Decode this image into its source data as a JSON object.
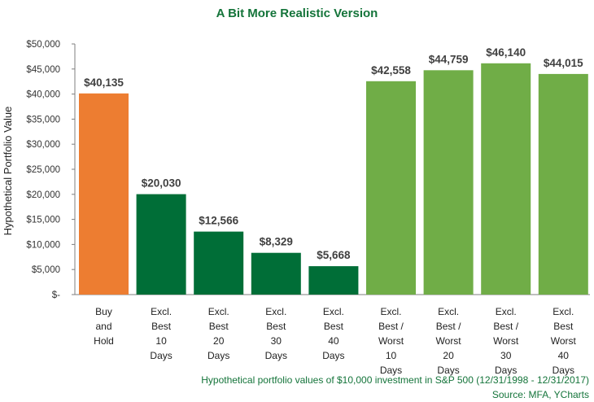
{
  "colors": {
    "title": "#14743a",
    "note": "#14743a",
    "orange": "#ed7d31",
    "dark_green": "#006e37",
    "light_green": "#70ad47",
    "axis": "#7f7f7f",
    "text": "#222222"
  },
  "chart_data": {
    "type": "bar",
    "title": "A Bit More Realistic Version",
    "ylabel": "Hypothetical Portfolio Value",
    "xlabel": "",
    "ylim": [
      0,
      50000
    ],
    "yticks": [
      0,
      5000,
      10000,
      15000,
      20000,
      25000,
      30000,
      35000,
      40000,
      45000,
      50000
    ],
    "ytick_labels": [
      "$-",
      "$5,000",
      "$10,000",
      "$15,000",
      "$20,000",
      "$25,000",
      "$30,000",
      "$35,000",
      "$40,000",
      "$45,000",
      "$50,000"
    ],
    "grid": false,
    "legend": "none",
    "categories": [
      [
        "Buy",
        "and",
        "Hold"
      ],
      [
        "Excl.",
        "Best",
        "10",
        "Days"
      ],
      [
        "Excl.",
        "Best",
        "20",
        "Days"
      ],
      [
        "Excl.",
        "Best",
        "30",
        "Days"
      ],
      [
        "Excl.",
        "Best",
        "40",
        "Days"
      ],
      [
        "Excl.",
        "Best /",
        "Worst",
        "10",
        "Days"
      ],
      [
        "Excl.",
        "Best /",
        "Worst",
        "20",
        "Days"
      ],
      [
        "Excl.",
        "Best /",
        "Worst",
        "30",
        "Days"
      ],
      [
        "Excl.",
        "Best",
        "Worst",
        "40",
        "Days"
      ]
    ],
    "values": [
      40135,
      20030,
      12566,
      8329,
      5668,
      42558,
      44759,
      46140,
      44015
    ],
    "data_labels": [
      "$40,135",
      "$20,030",
      "$12,566",
      "$8,329",
      "$5,668",
      "$42,558",
      "$44,759",
      "$46,140",
      "$44,015"
    ],
    "bar_colors": [
      "orange",
      "dark_green",
      "dark_green",
      "dark_green",
      "dark_green",
      "light_green",
      "light_green",
      "light_green",
      "light_green"
    ]
  },
  "footnote": {
    "line1": "Hypothetical portfolio values of $10,000 investment in S&P 500 (12/31/1998 - 12/31/2017)",
    "line2": "Source: MFA, YCharts"
  }
}
